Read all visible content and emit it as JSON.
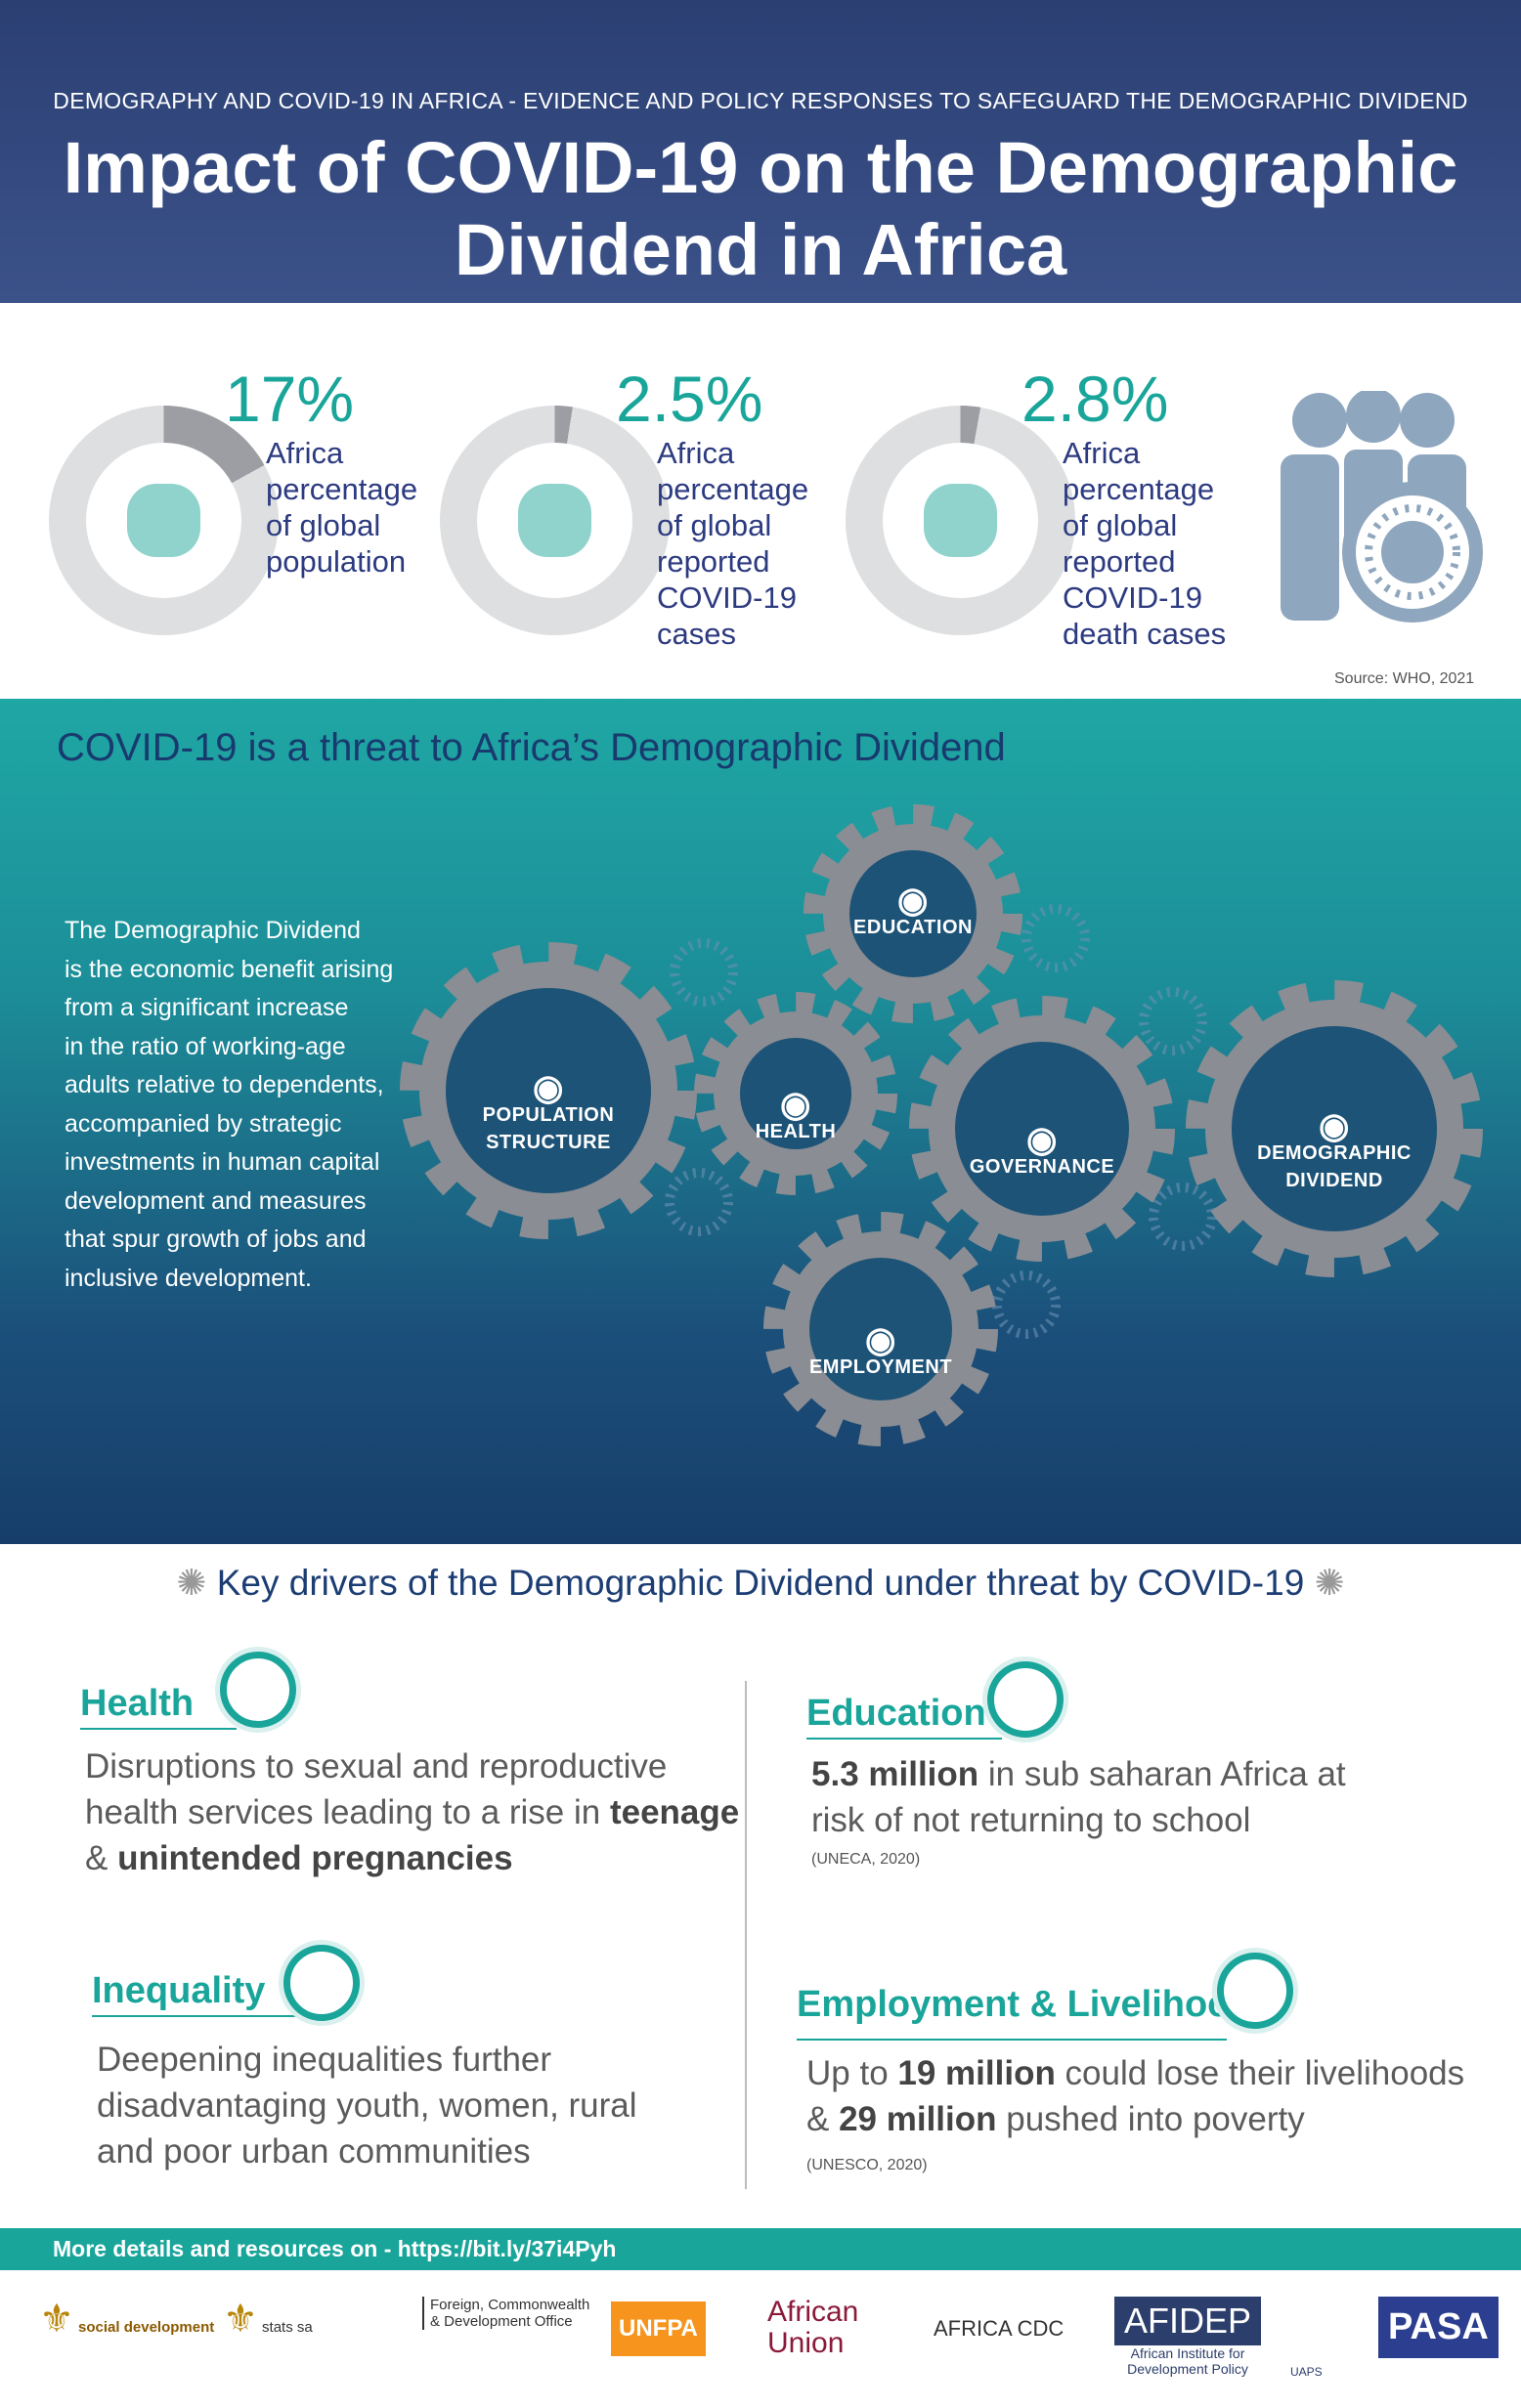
{
  "header": {
    "subtitle": "DEMOGRAPHY AND COVID-19 IN AFRICA - EVIDENCE AND POLICY RESPONSES TO SAFEGUARD THE DEMOGRAPHIC DIVIDEND",
    "title_line1": "Impact of COVID-19 on the Demographic",
    "title_line2": "Dividend in Africa"
  },
  "stats": [
    {
      "value": "17%",
      "fraction": 0.17,
      "desc": [
        "Africa",
        "percentage",
        "of global",
        "population"
      ],
      "icon": "africa-people-icon"
    },
    {
      "value": "2.5%",
      "fraction": 0.025,
      "desc": [
        "Africa",
        "percentage",
        "of global",
        "reported",
        "COVID-19",
        "cases"
      ],
      "icon": "test-tube-virus-icon"
    },
    {
      "value": "2.8%",
      "fraction": 0.028,
      "desc": [
        "Africa",
        "percentage",
        "of global",
        "reported",
        "COVID-19",
        "death cases"
      ],
      "icon": "feet-tag-icon"
    }
  ],
  "source": "Source: WHO, 2021",
  "threat": {
    "heading": "COVID-19 is a threat to Africa’s Demographic Dividend",
    "paragraph": [
      "The Demographic Dividend",
      "is the economic benefit arising",
      "from a significant increase",
      "in the ratio of working-age",
      "adults relative to dependents,",
      "accompanied by strategic",
      "investments in human capital",
      "development and measures",
      "that spur growth of jobs and",
      "inclusive development."
    ],
    "gears": [
      {
        "l1": "EDUCATION",
        "l2": ""
      },
      {
        "l1": "POPULATION",
        "l2": "STRUCTURE"
      },
      {
        "l1": "HEALTH",
        "l2": ""
      },
      {
        "l1": "GOVERNANCE",
        "l2": ""
      },
      {
        "l1": "DEMOGRAPHIC",
        "l2": "DIVIDEND"
      },
      {
        "l1": "EMPLOYMENT",
        "l2": ""
      }
    ]
  },
  "drivers": {
    "heading": "Key drivers of the Demographic Dividend under threat by COVID-19",
    "health": {
      "title": "Health",
      "t1": "Disruptions to sexual and reproductive",
      "t2": "health services leading to a rise in ",
      "b1": "teenage",
      "t3": "& ",
      "b2": "unintended pregnancies"
    },
    "education": {
      "title": "Education",
      "b1": "5.3 million",
      "t1": " in sub saharan Africa at",
      "t2": "risk of not returning to school",
      "src": "(UNECA, 2020)"
    },
    "inequality": {
      "title": "Inequality",
      "t1": "Deepening inequalities further",
      "t2": "disadvantaging youth, women, rural",
      "t3": "and poor urban communities"
    },
    "employment": {
      "title": "Employment & Livelihoods",
      "t1": "Up to ",
      "b1": "19 million",
      "t2": " could lose their livelihoods",
      "t3": "& ",
      "b2": "29 million",
      "t4": " pushed into poverty",
      "src": "(UNESCO, 2020)"
    }
  },
  "footer": {
    "text": "More details and resources on -  https://bit.ly/37i4Pyh"
  },
  "logos": [
    "social development",
    "stats sa",
    "Foreign, Commonwealth & Development Office",
    "UNFPA",
    "African Union",
    "AFRICA CDC",
    "AFIDEP",
    "African Institute for Development Policy",
    "UAPS",
    "PASA"
  ],
  "colors": {
    "teal": "#1aa59a",
    "navy": "#2c3a80",
    "gear": "#8a8d93"
  }
}
